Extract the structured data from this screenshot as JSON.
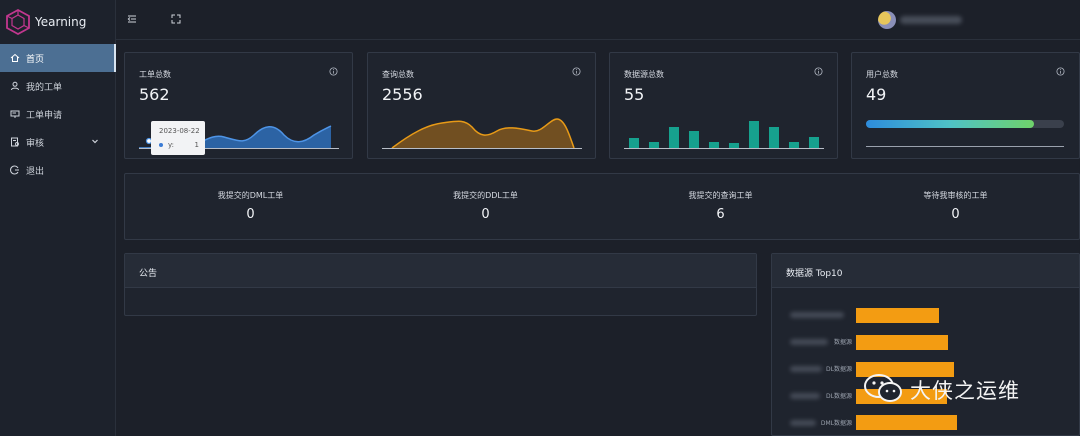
{
  "app": {
    "name": "Yearning"
  },
  "sidebar": {
    "items": [
      {
        "label": "首页",
        "icon": "home-icon",
        "active": true
      },
      {
        "label": "我的工单",
        "icon": "user-icon"
      },
      {
        "label": "工单申请",
        "icon": "form-icon"
      },
      {
        "label": "审核",
        "icon": "audit-icon"
      },
      {
        "label": "退出",
        "icon": "logout-icon"
      }
    ]
  },
  "header": {
    "menu_icon": "menu-fold-icon",
    "fullscreen_icon": "fullscreen-icon"
  },
  "stats": [
    {
      "title": "工单总数",
      "value": "562"
    },
    {
      "title": "查询总数",
      "value": "2556"
    },
    {
      "title": "数据源总数",
      "value": "55"
    },
    {
      "title": "用户总数",
      "value": "49"
    }
  ],
  "tooltip": {
    "date": "2023-08-22",
    "series": "y:",
    "value": "1"
  },
  "user_progress": 0.85,
  "summary": [
    {
      "label": "我提交的DML工单",
      "value": "0"
    },
    {
      "label": "我提交的DDL工单",
      "value": "0"
    },
    {
      "label": "我提交的查询工单",
      "value": "6"
    },
    {
      "label": "等待我审核的工单",
      "value": "0"
    }
  ],
  "notice": {
    "title": "公告"
  },
  "top_sources": {
    "title": "数据源 Top10",
    "bars": [
      {
        "label": "",
        "value": 83
      },
      {
        "label": "数据源",
        "value": 92
      },
      {
        "label": "DL数据源",
        "value": 98
      },
      {
        "label": "DL数据源",
        "value": 91
      },
      {
        "label": "DML数据源",
        "value": 101
      }
    ]
  },
  "watermark": {
    "text": "大侠之运维"
  },
  "colors": {
    "accent": "#4c6f93",
    "bars": "#f39c12",
    "spark_blue": "#2f6fb8",
    "spark_orange": "#e79a17",
    "spark_teal": "#16a18e"
  }
}
